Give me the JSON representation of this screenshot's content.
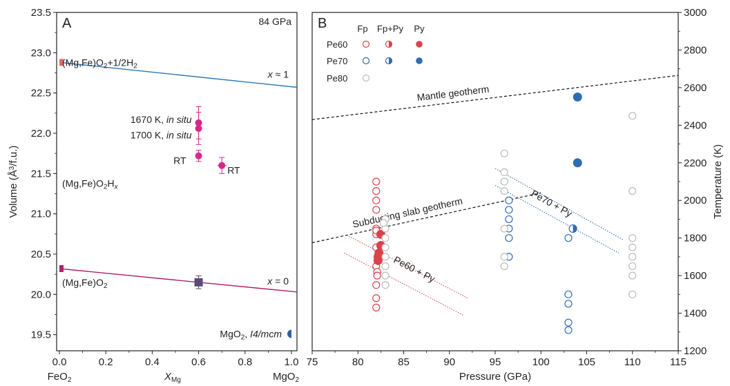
{
  "chart_data": [
    {
      "panel_label": "A",
      "type": "scatter",
      "xlabel": "X",
      "xlabel_sub": "Mg",
      "ylabel": "Volume (Å³/f.u.)",
      "xlim": [
        0.0,
        1.0
      ],
      "ylim": [
        19.3,
        23.5
      ],
      "xticks": [
        "0.0",
        "0.2",
        "0.4",
        "0.6",
        "0.8",
        "1.0"
      ],
      "yticks": [
        "19.5",
        "20.0",
        "20.5",
        "21.0",
        "21.5",
        "22.0",
        "22.5",
        "23.0",
        "23.5"
      ],
      "x_end_labels": {
        "left": "FeO",
        "left_sub": "2",
        "right": "MgO",
        "right_sub": "2"
      },
      "pressure_label": "84 GPa",
      "lines": [
        {
          "label_a": "x",
          "label_b": " ≈ 1",
          "x": [
            0.0,
            1.0
          ],
          "y": [
            22.88,
            22.57
          ],
          "color": "#2878b4"
        },
        {
          "label_a": "x",
          "label_b": " = 0",
          "x": [
            0.0,
            1.0
          ],
          "y": [
            20.32,
            20.03
          ],
          "color": "#b0206a"
        }
      ],
      "points": [
        {
          "x": 0.0,
          "y": 22.88,
          "marker": "square",
          "color": "#e06a6a"
        },
        {
          "x": 0.0,
          "y": 20.32,
          "marker": "square",
          "color": "#b0206a"
        },
        {
          "x": 0.6,
          "y": 20.15,
          "yerr": 0.08,
          "xerr": 0.015,
          "marker": "square",
          "color": "#5a4a78"
        },
        {
          "x": 0.6,
          "y": 22.13,
          "yerr": 0.2,
          "xerr": 0.015,
          "marker": "circle",
          "color": "#d6288c"
        },
        {
          "x": 0.6,
          "y": 22.06,
          "yerr": 0.2,
          "xerr": 0.015,
          "marker": "circle",
          "color": "#d6288c"
        },
        {
          "x": 0.6,
          "y": 21.72,
          "yerr": 0.07,
          "xerr": 0.015,
          "marker": "circle",
          "color": "#d6288c"
        },
        {
          "x": 0.7,
          "y": 21.6,
          "yerr": 0.1,
          "xerr": 0.02,
          "marker": "circle",
          "color": "#d6288c"
        },
        {
          "x": 1.0,
          "y": 19.51,
          "marker": "circle",
          "color": "#2e5fa8"
        }
      ],
      "annotations": {
        "fe_h": {
          "a": "(Mg,Fe)O",
          "b": "2",
          "c": "+1/2H",
          "d": "2"
        },
        "fe_hx": {
          "a": "(Mg,Fe)O",
          "b": "2",
          "c": "H",
          "d": "x"
        },
        "fe_o2": {
          "a": "(Mg,Fe)O",
          "b": "2"
        },
        "insitu1": {
          "a": "1670 K, ",
          "b": "in situ"
        },
        "insitu2": {
          "a": "1700 K, ",
          "b": "in situ"
        },
        "rt1": "RT",
        "rt2": "RT",
        "mgo2": {
          "a": "MgO",
          "b": "2",
          "c": ", ",
          "d": "I4/mcm"
        }
      }
    },
    {
      "panel_label": "B",
      "type": "scatter",
      "xlabel": "Pressure (GPa)",
      "ylabel": "Temperature (K)",
      "xlim": [
        75,
        115
      ],
      "ylim": [
        1200,
        3000
      ],
      "xticks": [
        "75",
        "80",
        "85",
        "90",
        "95",
        "100",
        "105",
        "110",
        "115"
      ],
      "yticks": [
        "1200",
        "1400",
        "1600",
        "1800",
        "2000",
        "2200",
        "2400",
        "2600",
        "2800",
        "3000"
      ],
      "legend": {
        "columns": [
          "Fp",
          "Fp+Py",
          "Py"
        ],
        "rows": [
          {
            "name": "Pe60",
            "color": "#d9434b"
          },
          {
            "name": "Pe70",
            "color": "#2e6bb5"
          },
          {
            "name": "Pe80",
            "color": "#bbbbbb"
          }
        ]
      },
      "geotherms": [
        {
          "label": "Mantle geotherm",
          "x": [
            75,
            115
          ],
          "y": [
            2430,
            2665
          ]
        },
        {
          "label": "Subducting slab geotherm",
          "x": [
            75,
            100
          ],
          "y": [
            1775,
            2040
          ]
        }
      ],
      "phase_boundaries": [
        {
          "label": "Pe60 + Py",
          "color": "#d9434b",
          "lines": [
            {
              "x": [
                79,
                92
              ],
              "y": [
                1810,
                1480
              ]
            },
            {
              "x": [
                78.5,
                91.5
              ],
              "y": [
                1720,
                1390
              ]
            }
          ]
        },
        {
          "label": "Pe70 + Py",
          "color": "#2e6bb5",
          "lines": [
            {
              "x": [
                95,
                109
              ],
              "y": [
                2170,
                1790
              ]
            },
            {
              "x": [
                95,
                108.5
              ],
              "y": [
                2080,
                1720
              ]
            }
          ]
        }
      ],
      "series": [
        {
          "name": "Pe60 Fp",
          "style": "open",
          "color": "#d9434b",
          "points": [
            [
              82,
              1430
            ],
            [
              82,
              1480
            ],
            [
              82,
              1550
            ],
            [
              82,
              1650
            ],
            [
              82,
              1750
            ],
            [
              82,
              1850
            ],
            [
              82,
              1950
            ],
            [
              82,
              2000
            ],
            [
              82,
              2050
            ],
            [
              82,
              2100
            ],
            [
              82,
              1820
            ],
            [
              82,
              1840
            ],
            [
              82.1,
              1620
            ],
            [
              82.1,
              1600
            ],
            [
              82.2,
              1700
            ]
          ]
        },
        {
          "name": "Pe60 Py",
          "style": "filled",
          "color": "#d9434b",
          "points": [
            [
              82.5,
              1820
            ],
            [
              82.5,
              1760
            ],
            [
              82.3,
              1720
            ],
            [
              82.2,
              1700
            ],
            [
              82.2,
              1680
            ]
          ]
        },
        {
          "name": "Pe70 Fp",
          "style": "open",
          "color": "#2e6bb5",
          "points": [
            [
              96.5,
              1800
            ],
            [
              96.5,
              1850
            ],
            [
              96.5,
              1900
            ],
            [
              96.5,
              1950
            ],
            [
              96.5,
              2000
            ],
            [
              96.5,
              1700
            ],
            [
              103,
              1800
            ],
            [
              103,
              1500
            ],
            [
              103,
              1450
            ],
            [
              103,
              1350
            ],
            [
              103,
              1310
            ]
          ]
        },
        {
          "name": "Pe70 Fp+Py",
          "style": "half",
          "color": "#2e6bb5",
          "points": [
            [
              103.5,
              1850
            ]
          ]
        },
        {
          "name": "Pe70 Py",
          "style": "filled",
          "color": "#2e6bb5",
          "points": [
            [
              104,
              2550
            ],
            [
              104,
              2200
            ]
          ]
        },
        {
          "name": "Pe80 Fp",
          "style": "open",
          "color": "#bbbbbb",
          "points": [
            [
              83,
              1650
            ],
            [
              83,
              1700
            ],
            [
              83,
              1750
            ],
            [
              83,
              1800
            ],
            [
              83,
              1850
            ],
            [
              83,
              1900
            ],
            [
              82.8,
              1880
            ],
            [
              83,
              1600
            ],
            [
              83,
              1550
            ],
            [
              96,
              2250
            ],
            [
              96,
              2150
            ],
            [
              96,
              2100
            ],
            [
              96,
              2050
            ],
            [
              96,
              1850
            ],
            [
              96,
              1700
            ],
            [
              96,
              1650
            ],
            [
              110,
              2450
            ],
            [
              110,
              2050
            ],
            [
              110,
              1800
            ],
            [
              110,
              1750
            ],
            [
              110,
              1700
            ],
            [
              110,
              1650
            ],
            [
              110,
              1600
            ],
            [
              110,
              1500
            ]
          ]
        }
      ]
    }
  ]
}
